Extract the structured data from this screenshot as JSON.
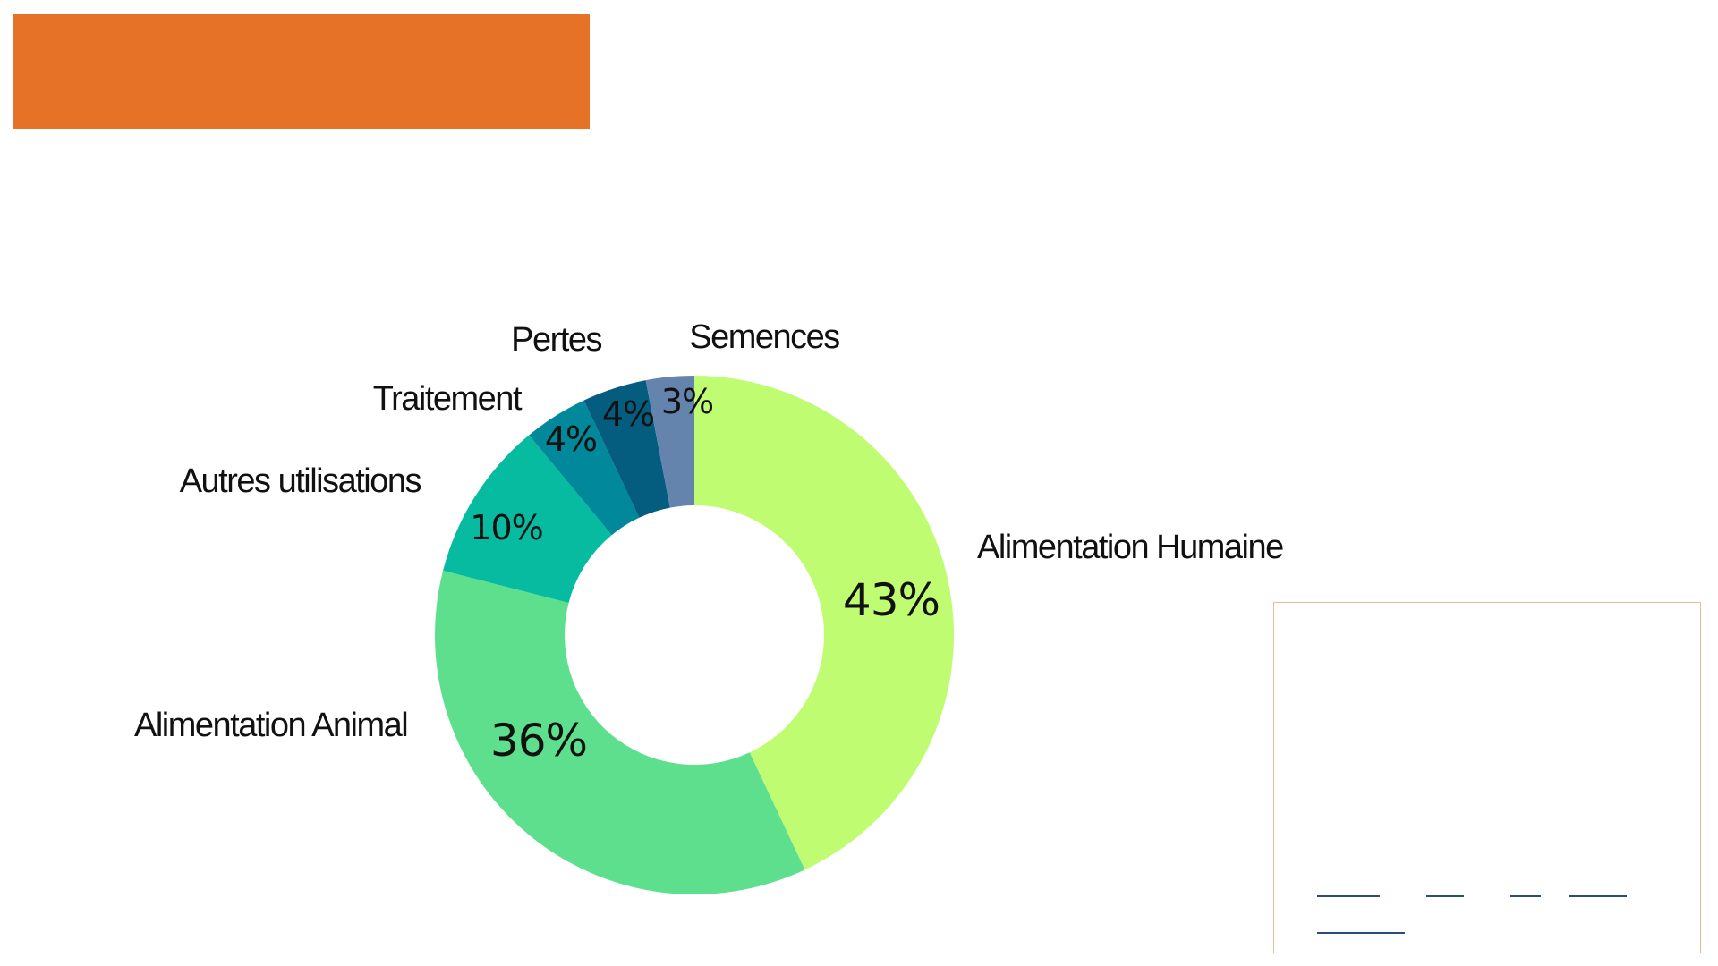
{
  "colors": {
    "banner": "#e57226",
    "box_border": "#f0b896",
    "links": "#2c4a7c"
  },
  "chart_data": {
    "type": "pie",
    "variant": "donut",
    "start_angle_deg": 0,
    "direction": "clockwise",
    "slices": [
      {
        "label": "Alimentation Humaine",
        "value": 43,
        "value_label": "43%",
        "color": "#bffc72"
      },
      {
        "label": "Alimentation Animal",
        "value": 36,
        "value_label": "36%",
        "color": "#5ddf8e"
      },
      {
        "label": "Autres utilisations",
        "value": 10,
        "value_label": "10%",
        "color": "#07bba0"
      },
      {
        "label": "Traitement",
        "value": 4,
        "value_label": "4%",
        "color": "#01889b"
      },
      {
        "label": "Pertes",
        "value": 4,
        "value_label": "4%",
        "color": "#045d7f"
      },
      {
        "label": "Semences",
        "value": 3,
        "value_label": "3%",
        "color": "#6483ad"
      }
    ]
  }
}
